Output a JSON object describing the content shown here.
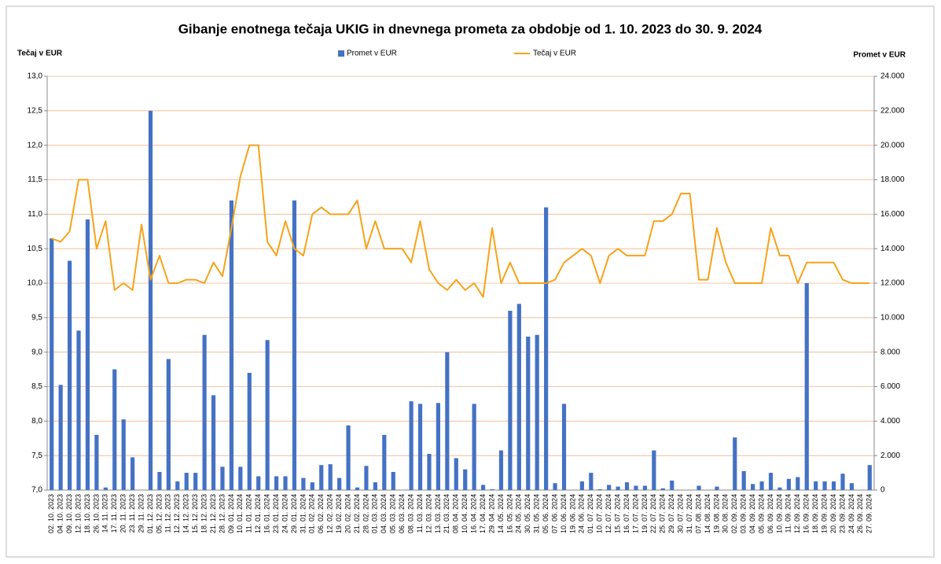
{
  "chart_data": {
    "type": "combo",
    "title": "Gibanje enotnega tečaja UKIG in dnevnega prometa za obdobje od 1. 10. 2023 do 30. 9. 2024",
    "y_label": "Tečaj v EUR",
    "y2_label": "Promet v EUR",
    "categories": [
      "02. 10. 2023",
      "04. 10. 2023",
      "09. 10. 2023",
      "12. 10. 2023",
      "18. 10. 2023",
      "26. 10. 2023",
      "14. 11. 2023",
      "17. 11. 2023",
      "20. 11. 2023",
      "23. 11. 2023",
      "29. 11. 2023",
      "01. 12. 2023",
      "05. 12. 2023",
      "11. 12. 2023",
      "12. 12. 2023",
      "14. 12. 2023",
      "15. 12. 2023",
      "18. 12. 2023",
      "21. 12. 2023",
      "28. 12. 2023",
      "09. 01. 2024",
      "10. 01. 2024",
      "11. 01. 2024",
      "12. 01. 2024",
      "16. 01. 2024",
      "23. 01. 2024",
      "24. 01. 2024",
      "29. 01. 2024",
      "31. 01. 2024",
      "01. 02. 2024",
      "06. 02. 2024",
      "12. 02. 2024",
      "19. 02. 2024",
      "20. 02. 2024",
      "21. 02. 2024",
      "28. 02. 2024",
      "01. 03. 2024",
      "04. 03. 2024",
      "05. 03. 2024",
      "06. 03. 2024",
      "08. 03. 2024",
      "11. 03. 2024",
      "12. 03. 2024",
      "13. 03. 2024",
      "21. 03. 2024",
      "08. 04. 2024",
      "10. 04. 2024",
      "16. 04. 2024",
      "17. 04. 2024",
      "29. 04. 2024",
      "14. 05. 2024",
      "16. 05. 2024",
      "24. 05. 2024",
      "30. 05. 2024",
      "31. 05. 2024",
      "05. 06. 2024",
      "07. 06. 2024",
      "10. 06. 2024",
      "19. 06. 2024",
      "24. 06. 2024",
      "01. 07. 2024",
      "10. 07. 2024",
      "12. 07. 2024",
      "15. 07. 2024",
      "16. 07. 2024",
      "17. 07. 2024",
      "19. 07. 2024",
      "22. 07. 2024",
      "25. 07. 2024",
      "29. 07. 2024",
      "30. 07. 2024",
      "31. 07. 2024",
      "07. 08. 2024",
      "14. 08. 2024",
      "19. 08. 2024",
      "30. 08. 2024",
      "02. 09. 2024",
      "03. 09. 2024",
      "04. 09. 2024",
      "05. 09. 2024",
      "06. 09. 2024",
      "10. 09. 2024",
      "11. 09. 2024",
      "12. 09. 2024",
      "16. 09. 2024",
      "18. 09. 2024",
      "19. 09. 2024",
      "20. 09. 2024",
      "23. 09. 2024",
      "24. 09. 2024",
      "26. 09. 2024",
      "27. 09. 2024"
    ],
    "series": [
      {
        "name": "Promet v EUR",
        "type": "bar",
        "axis": "y2",
        "color": "#4472c4",
        "values": [
          14600,
          6100,
          13300,
          9250,
          15700,
          3200,
          150,
          7000,
          4100,
          1900,
          0,
          22000,
          1050,
          7600,
          500,
          1000,
          1000,
          9000,
          5500,
          1350,
          16800,
          1350,
          6800,
          800,
          8700,
          800,
          800,
          16800,
          700,
          450,
          1450,
          1500,
          700,
          3750,
          150,
          1400,
          450,
          3200,
          1050,
          0,
          5150,
          5000,
          2100,
          5050,
          8000,
          1850,
          1200,
          5000,
          300,
          50,
          2300,
          10400,
          10800,
          8900,
          9000,
          16400,
          400,
          5000,
          0,
          500,
          1000,
          50,
          300,
          200,
          450,
          250,
          250,
          2300,
          100,
          550,
          0,
          0,
          250,
          0,
          200,
          0,
          3050,
          1100,
          350,
          500,
          1000,
          150,
          650,
          750,
          12000,
          500,
          500,
          500,
          950,
          400,
          0,
          1450
        ]
      },
      {
        "name": "Tečaj v EUR",
        "type": "line",
        "axis": "y",
        "color": "#f5a31a",
        "values": [
          10.65,
          10.6,
          10.75,
          11.5,
          11.5,
          10.5,
          10.9,
          9.9,
          10.0,
          9.9,
          10.85,
          10.05,
          10.4,
          10.0,
          10.0,
          10.05,
          10.05,
          10.0,
          10.3,
          10.1,
          10.8,
          11.55,
          12.0,
          12.0,
          10.6,
          10.4,
          10.9,
          10.5,
          10.4,
          11.0,
          11.1,
          11.0,
          11.0,
          11.0,
          11.2,
          10.5,
          10.9,
          10.5,
          10.5,
          10.5,
          10.3,
          10.9,
          10.2,
          10.0,
          9.9,
          10.05,
          9.9,
          10.0,
          9.8,
          10.8,
          10.0,
          10.3,
          10.0,
          10.0,
          10.0,
          10.0,
          10.05,
          10.3,
          10.4,
          10.5,
          10.4,
          10.0,
          10.4,
          10.5,
          10.4,
          10.4,
          10.4,
          10.9,
          10.9,
          11.0,
          11.3,
          11.3,
          10.05,
          10.05,
          10.8,
          10.3,
          10.0,
          10.0,
          10.0,
          10.0,
          10.8,
          10.4,
          10.4,
          10.0,
          10.3,
          10.3,
          10.3,
          10.3,
          10.05,
          10.0,
          10.0,
          10.0
        ]
      }
    ],
    "ylim": [
      7,
      13
    ],
    "yticks": [
      {
        "value": 7,
        "label": "7,0"
      },
      {
        "value": 7.5,
        "label": "7,5"
      },
      {
        "value": 8,
        "label": "8,0"
      },
      {
        "value": 8.5,
        "label": "8,5"
      },
      {
        "value": 9,
        "label": "9,0"
      },
      {
        "value": 9.5,
        "label": "9,5"
      },
      {
        "value": 10,
        "label": "10,0"
      },
      {
        "value": 10.5,
        "label": "10,5"
      },
      {
        "value": 11,
        "label": "11,0"
      },
      {
        "value": 11.5,
        "label": "11,5"
      },
      {
        "value": 12,
        "label": "12,0"
      },
      {
        "value": 12.5,
        "label": "12,5"
      },
      {
        "value": 13,
        "label": "13,0"
      }
    ],
    "y2lim": [
      0,
      24000
    ],
    "y2ticks": [
      0,
      {
        "value": 2000,
        "label": "2.000"
      },
      {
        "value": 4000,
        "label": "4.000"
      },
      {
        "value": 6000,
        "label": "6.000"
      },
      {
        "value": 8000,
        "label": "8.000"
      },
      {
        "value": 10000,
        "label": "10.000"
      },
      {
        "value": 12000,
        "label": "12.000"
      },
      {
        "value": 14000,
        "label": "14.000"
      },
      {
        "value": 16000,
        "label": "16.000"
      },
      {
        "value": 18000,
        "label": "18.000"
      },
      {
        "value": 20000,
        "label": "20.000"
      },
      {
        "value": 22000,
        "label": "22.000"
      },
      {
        "value": 24000,
        "label": "24.000"
      }
    ],
    "grid": true,
    "legend": "top"
  }
}
